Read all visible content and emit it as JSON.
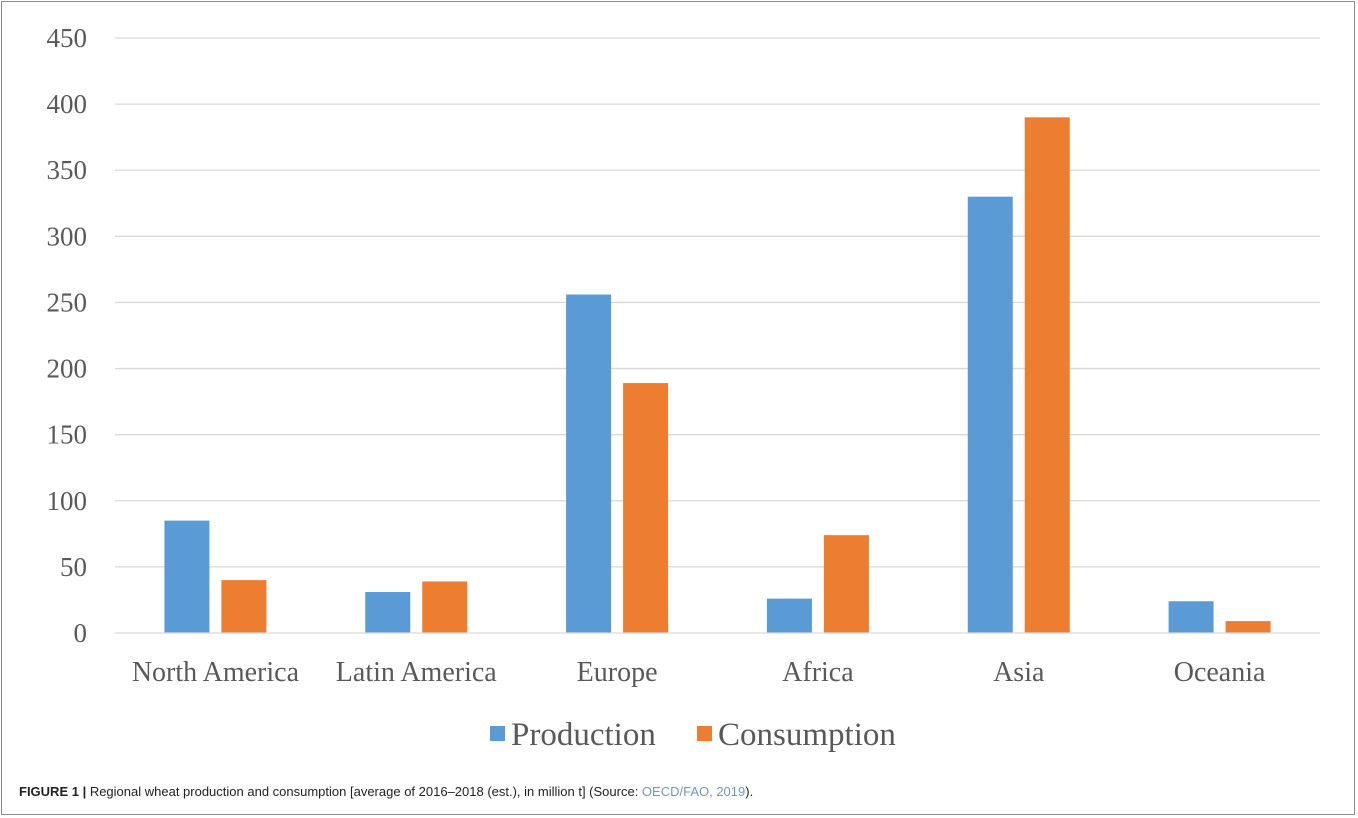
{
  "chart_data": {
    "type": "bar",
    "categories": [
      "North America",
      "Latin America",
      "Europe",
      "Africa",
      "Asia",
      "Oceania"
    ],
    "series": [
      {
        "name": "Production",
        "values": [
          85,
          31,
          256,
          26,
          330,
          24
        ],
        "color": "#5b9bd5"
      },
      {
        "name": "Consumption",
        "values": [
          40,
          39,
          189,
          74,
          390,
          9
        ],
        "color": "#ed7d31"
      }
    ],
    "title": "",
    "xlabel": "",
    "ylabel": "",
    "ylim": [
      0,
      450
    ],
    "yticks": [
      "0",
      "50",
      "100",
      "150",
      "200",
      "250",
      "300",
      "350",
      "400",
      "450"
    ],
    "grid": true,
    "legend_position": "bottom"
  },
  "caption": {
    "label": "FIGURE 1 |",
    "text": " Regional wheat production and consumption [average of 2016–2018 (est.), in million t] (Source: ",
    "ref": "OECD/FAO, 2019",
    "end": ")."
  }
}
